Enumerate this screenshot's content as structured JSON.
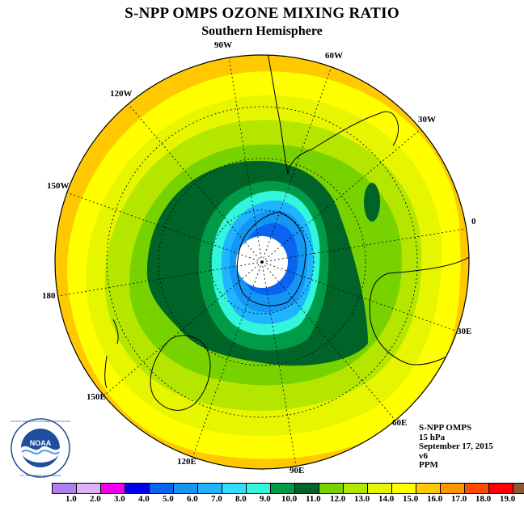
{
  "title": "S-NPP OMPS OZONE MIXING RATIO",
  "subtitle": "Southern Hemisphere",
  "longitude_labels": [
    "90W",
    "60W",
    "120W",
    "30W",
    "150W",
    "0",
    "180",
    "30E",
    "150E",
    "60E",
    "120E",
    "90E"
  ],
  "info": {
    "instrument": "S-NPP OMPS",
    "level": "15 hPa",
    "date": "September 17, 2015",
    "version": "v6",
    "units": "PPM"
  },
  "legend": {
    "ticks": [
      "1.0",
      "2.0",
      "3.0",
      "4.0",
      "5.0",
      "6.0",
      "7.0",
      "8.0",
      "9.0",
      "10.0",
      "11.0",
      "12.0",
      "13.0",
      "14.0",
      "15.0",
      "16.0",
      "17.0",
      "18.0",
      "19.0"
    ],
    "colors": [
      "#b07fef",
      "#dcb4f5",
      "#ee00ee",
      "#0000f0",
      "#0a64f0",
      "#1496f5",
      "#1eb4ff",
      "#32dcff",
      "#32f5dc",
      "#009b46",
      "#006428",
      "#78d200",
      "#b4e600",
      "#e6f500",
      "#ffff00",
      "#ffc800",
      "#ff9600",
      "#ff4b00",
      "#ff0000",
      "#8b5a32"
    ]
  },
  "logo": {
    "text": "NOAA",
    "ring_text": "NATIONAL OCEANIC AND ATMOSPHERIC ADMINISTRATION",
    "bottom_text": "U.S. DEPARTMENT OF COMMERCE"
  },
  "contour_colors": {
    "band_15_16": "#ffc800",
    "band_14_15": "#ffff00",
    "band_13_14": "#e6f500",
    "band_12_13": "#b4e600",
    "band_11_12": "#78d200",
    "band_10_11": "#006428",
    "band_9_10": "#009b46",
    "band_8_9": "#32f5dc",
    "band_7_8": "#1eb4ff",
    "band_6_7": "#1496f5",
    "band_5_6": "#0a64f0"
  }
}
